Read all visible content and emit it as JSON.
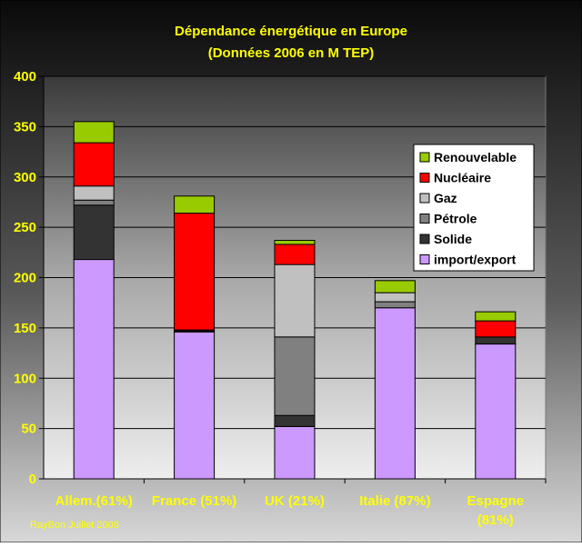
{
  "chart_data": {
    "type": "bar",
    "stacked": true,
    "title": "Dépendance énergétique en Europe",
    "subtitle": "(Données 2006 en M TEP)",
    "xlabel": "",
    "ylabel": "",
    "ylim": [
      0,
      400
    ],
    "yticks": [
      0,
      50,
      100,
      150,
      200,
      250,
      300,
      350,
      400
    ],
    "grid": true,
    "legend_position": "right",
    "categories": [
      "Allem.(61%)",
      "France (51%)",
      "UK (21%)",
      "Italie (87%)",
      "Espagne (81%)"
    ],
    "category_lines": [
      [
        "Allem.(61%)"
      ],
      [
        "France (51%)"
      ],
      [
        "UK (21%)"
      ],
      [
        "Italie (87%)"
      ],
      [
        "Espagne",
        "(81%)"
      ]
    ],
    "series": [
      {
        "name": "import/export",
        "color": "#cc99ff",
        "values": [
          218,
          146,
          52,
          170,
          134
        ]
      },
      {
        "name": "Solide",
        "color": "#333333",
        "values": [
          54,
          1,
          11,
          0,
          7
        ]
      },
      {
        "name": "Pétrole",
        "color": "#808080",
        "values": [
          5,
          1,
          78,
          6,
          0
        ]
      },
      {
        "name": "Gaz",
        "color": "#c0c0c0",
        "values": [
          14,
          0,
          72,
          9,
          0
        ]
      },
      {
        "name": "Nucléaire",
        "color": "#ff0000",
        "values": [
          43,
          116,
          20,
          0,
          16
        ]
      },
      {
        "name": "Renouvelable",
        "color": "#99cc00",
        "values": [
          21,
          17,
          4,
          12,
          9
        ]
      }
    ],
    "credit": "RayBon Juillet 2008"
  },
  "colors": {
    "background_top": "#0a0a0a",
    "background_bottom": "#d8d8d8",
    "title": "#ffff00",
    "axis_labels": "#ffff00",
    "gridline": "#000000",
    "legend_background": "#ffffff"
  }
}
